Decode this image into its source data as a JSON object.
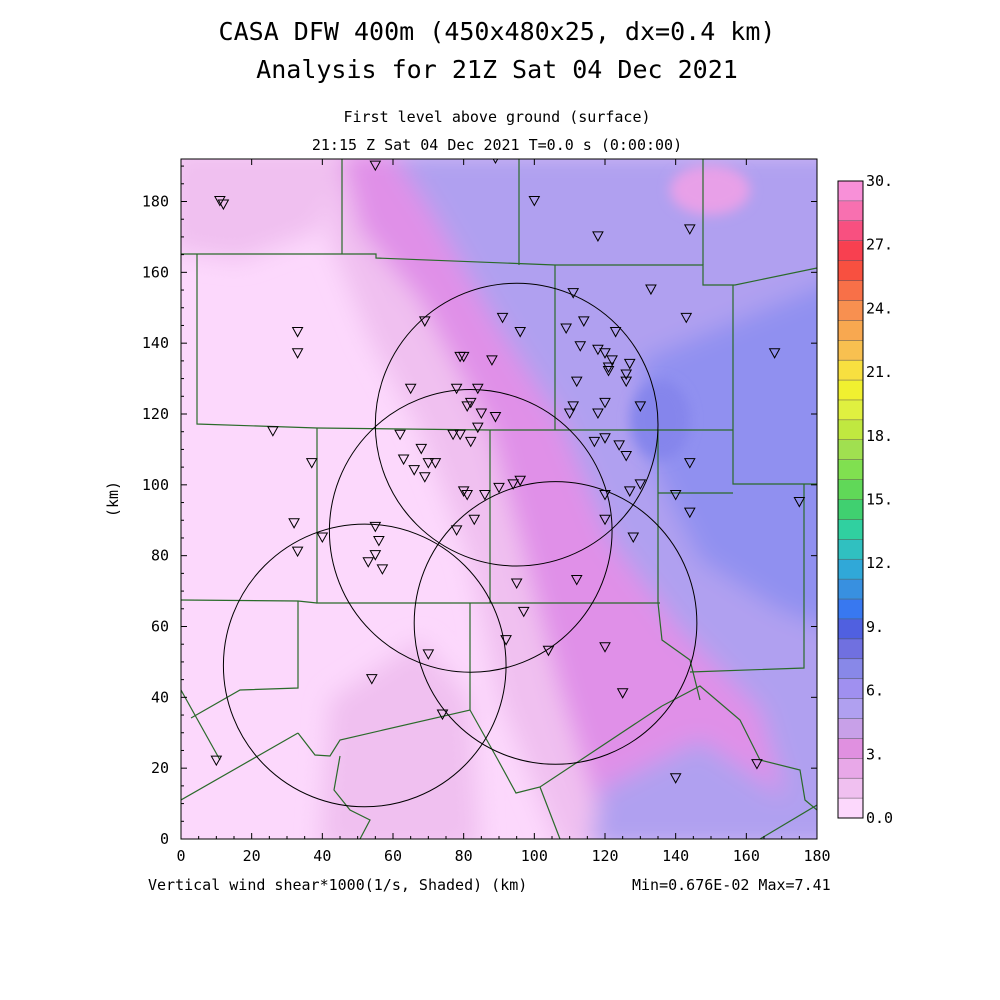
{
  "title_line1": "CASA DFW 400m (450x480x25, dx=0.4 km)",
  "title_line2": "Analysis for 21Z Sat 04 Dec 2021",
  "subtitle_line1": "First level above ground (surface)",
  "subtitle_line2": "21:15 Z Sat 04 Dec 2021   T=0.0 s (0:00:00)",
  "footer_left": "Vertical wind shear*1000(1/s, Shaded)  (km)",
  "footer_right": "Min=0.676E-02 Max=7.41",
  "colors": {
    "low": "#fcd8fc",
    "mid_low": "#f0c0f0",
    "magenta": "#e090e8",
    "purple": "#b0a0f0",
    "blue": "#9090f0",
    "county_lines": "#2a6a2a"
  },
  "chart_data": {
    "type": "heatmap",
    "xlabel": "(km)",
    "ylabel": "(km)",
    "xlim": [
      0,
      180
    ],
    "ylim": [
      0,
      192
    ],
    "x_ticks": [
      0,
      20,
      40,
      60,
      80,
      100,
      120,
      140,
      160,
      180
    ],
    "y_ticks": [
      0,
      20,
      40,
      60,
      80,
      100,
      120,
      140,
      160,
      180
    ],
    "field": "Vertical wind shear*1000 (1/s)",
    "min": "0.676E-02",
    "max": "7.41",
    "colorbar": {
      "range": [
        0,
        30
      ],
      "labels": [
        "0.0",
        "3.",
        "6.",
        "9.",
        "12.",
        "15.",
        "18.",
        "21.",
        "24.",
        "27.",
        "30."
      ],
      "colors": [
        "#fcd8fc",
        "#f0c0f0",
        "#e8a8e8",
        "#e090e0",
        "#c8a0e8",
        "#b0a0f0",
        "#a090f0",
        "#8888e8",
        "#7070e0",
        "#5060e0",
        "#3878f0",
        "#3890e0",
        "#30a8d8",
        "#30c0c0",
        "#30d0a0",
        "#40d070",
        "#60d858",
        "#80e050",
        "#a0e050",
        "#c0e840",
        "#e0f040",
        "#f0f030",
        "#f8e040",
        "#f8c050",
        "#f8a850",
        "#f89050",
        "#f87048",
        "#f85040",
        "#f84050",
        "#f85080",
        "#f870b0",
        "#f890d8"
      ]
    },
    "radar_circles": [
      {
        "center": [
          95,
          117
        ],
        "radius_km": 40
      },
      {
        "center": [
          82,
          87
        ],
        "radius_km": 40
      },
      {
        "center": [
          106,
          61
        ],
        "radius_km": 40
      },
      {
        "center": [
          52,
          49
        ],
        "radius_km": 40
      }
    ],
    "stations": [
      [
        89,
        192
      ],
      [
        55,
        190
      ],
      [
        11,
        180
      ],
      [
        12,
        179
      ],
      [
        100,
        180
      ],
      [
        118,
        170
      ],
      [
        144,
        172
      ],
      [
        133,
        155
      ],
      [
        111,
        154
      ],
      [
        143,
        147
      ],
      [
        91,
        147
      ],
      [
        69,
        146
      ],
      [
        114,
        146
      ],
      [
        33,
        143
      ],
      [
        109,
        144
      ],
      [
        96,
        143
      ],
      [
        123,
        143
      ],
      [
        113,
        139
      ],
      [
        120,
        137
      ],
      [
        118,
        138
      ],
      [
        122,
        135
      ],
      [
        127,
        134
      ],
      [
        121,
        133
      ],
      [
        121,
        132
      ],
      [
        126,
        131
      ],
      [
        33,
        137
      ],
      [
        79,
        136
      ],
      [
        80,
        136
      ],
      [
        88,
        135
      ],
      [
        168,
        137
      ],
      [
        126,
        129
      ],
      [
        112,
        129
      ],
      [
        84,
        127
      ],
      [
        65,
        127
      ],
      [
        78,
        127
      ],
      [
        81,
        122
      ],
      [
        82,
        123
      ],
      [
        120,
        123
      ],
      [
        111,
        122
      ],
      [
        130,
        122
      ],
      [
        110,
        120
      ],
      [
        118,
        120
      ],
      [
        85,
        120
      ],
      [
        89,
        119
      ],
      [
        84,
        116
      ],
      [
        62,
        114
      ],
      [
        77,
        114
      ],
      [
        79,
        114
      ],
      [
        82,
        112
      ],
      [
        117,
        112
      ],
      [
        120,
        113
      ],
      [
        124,
        111
      ],
      [
        26,
        115
      ],
      [
        68,
        110
      ],
      [
        126,
        108
      ],
      [
        37,
        106
      ],
      [
        63,
        107
      ],
      [
        70,
        106
      ],
      [
        72,
        106
      ],
      [
        66,
        104
      ],
      [
        69,
        102
      ],
      [
        144,
        106
      ],
      [
        96,
        101
      ],
      [
        130,
        100
      ],
      [
        94,
        100
      ],
      [
        90,
        99
      ],
      [
        127,
        98
      ],
      [
        80,
        98
      ],
      [
        81,
        97
      ],
      [
        120,
        97
      ],
      [
        140,
        97
      ],
      [
        86,
        97
      ],
      [
        175,
        95
      ],
      [
        144,
        92
      ],
      [
        120,
        90
      ],
      [
        32,
        89
      ],
      [
        83,
        90
      ],
      [
        78,
        87
      ],
      [
        128,
        85
      ],
      [
        55,
        88
      ],
      [
        40,
        85
      ],
      [
        56,
        84
      ],
      [
        33,
        81
      ],
      [
        55,
        80
      ],
      [
        53,
        78
      ],
      [
        57,
        76
      ],
      [
        112,
        73
      ],
      [
        95,
        72
      ],
      [
        97,
        64
      ],
      [
        92,
        56
      ],
      [
        120,
        54
      ],
      [
        104,
        53
      ],
      [
        70,
        52
      ],
      [
        54,
        45
      ],
      [
        125,
        41
      ],
      [
        74,
        35
      ],
      [
        140,
        17
      ],
      [
        10,
        22
      ],
      [
        163,
        21
      ]
    ]
  }
}
